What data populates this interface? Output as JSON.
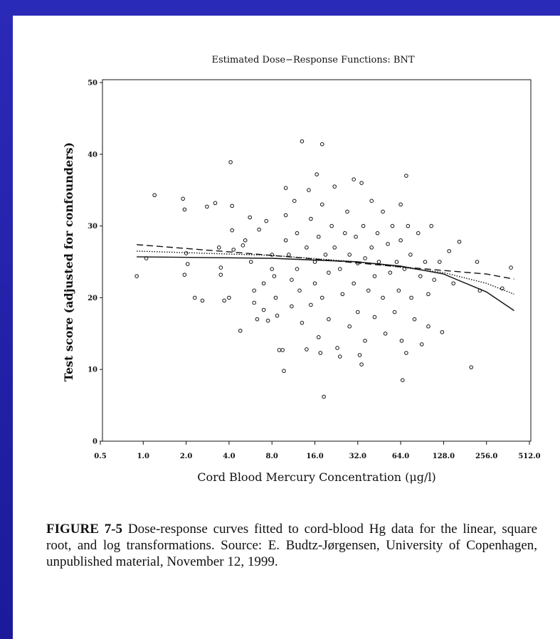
{
  "chart_data": {
    "type": "scatter",
    "title": "Estimated Dose−Response Functions: BNT",
    "xlabel": "Cord Blood Mercury Concentration (μg/l)",
    "ylabel": "Test score (adjusted for confounders)",
    "xscale": "log2",
    "xlim": [
      0.5,
      512
    ],
    "ylim": [
      0,
      50
    ],
    "xticks": [
      {
        "value": 0.5,
        "label": "0.5"
      },
      {
        "value": 1,
        "label": "1.0"
      },
      {
        "value": 2,
        "label": "2.0"
      },
      {
        "value": 4,
        "label": "4.0"
      },
      {
        "value": 8,
        "label": "8.0"
      },
      {
        "value": 16,
        "label": "16.0"
      },
      {
        "value": 32,
        "label": "32.0"
      },
      {
        "value": 64,
        "label": "64.0"
      },
      {
        "value": 128,
        "label": "128.0"
      },
      {
        "value": 256,
        "label": "256.0"
      },
      {
        "value": 512,
        "label": "512.0"
      }
    ],
    "yticks": [
      0,
      10,
      20,
      30,
      40,
      50
    ],
    "color": "#111111",
    "points": {
      "x": [
        0.9,
        1.05,
        1.2,
        1.9,
        1.95,
        2,
        1.95,
        2.05,
        2.3,
        2.6,
        2.8,
        3.2,
        3.4,
        3.5,
        3.5,
        3.7,
        4,
        4.1,
        4.2,
        4.2,
        4.3,
        4.8,
        5,
        5.2,
        5.6,
        5.7,
        6,
        6,
        6.3,
        6.5,
        7,
        7,
        7.3,
        7.5,
        8,
        8,
        8.3,
        8.5,
        8.7,
        9,
        9.5,
        9.7,
        10,
        10,
        10,
        10.5,
        11,
        11,
        11.5,
        12,
        12,
        12.5,
        13,
        13,
        14,
        14,
        14.5,
        15,
        15,
        16,
        16,
        16.5,
        17,
        17,
        17.5,
        18,
        18,
        18,
        18.5,
        19,
        20,
        20,
        21,
        22,
        22,
        23,
        24,
        24,
        25,
        26,
        27,
        28,
        28,
        30,
        30,
        31,
        32,
        32,
        33,
        34,
        34,
        35,
        36,
        36,
        38,
        40,
        40,
        42,
        42,
        44,
        45,
        48,
        48,
        50,
        52,
        54,
        56,
        58,
        60,
        62,
        64,
        64,
        65,
        66,
        68,
        70,
        70,
        72,
        75,
        76,
        80,
        85,
        88,
        90,
        95,
        100,
        100,
        105,
        110,
        120,
        125,
        140,
        150,
        165,
        200,
        220,
        230,
        330,
        380
      ],
      "y": [
        23,
        25.5,
        34.3,
        33.8,
        32.3,
        26.2,
        23.2,
        24.7,
        20,
        19.6,
        32.7,
        33.2,
        27,
        24.2,
        23.2,
        19.6,
        20,
        38.9,
        32.8,
        29.4,
        26.7,
        15.4,
        27.3,
        28,
        31.2,
        25,
        21,
        19.3,
        17,
        29.5,
        22,
        18.3,
        30.7,
        16.8,
        26,
        24,
        23,
        20,
        17.5,
        12.7,
        12.7,
        9.8,
        35.3,
        31.5,
        28,
        26,
        22.5,
        18.8,
        33.5,
        29,
        24,
        21,
        41.8,
        16.5,
        27,
        12.8,
        35,
        31,
        19,
        25,
        22,
        37.2,
        28.5,
        14.5,
        12.3,
        41.4,
        33,
        20,
        6.2,
        26,
        23.5,
        17,
        30,
        27,
        35.5,
        13,
        24,
        11.8,
        20.5,
        29,
        32,
        26,
        16,
        22,
        36.5,
        28.5,
        24.8,
        18,
        12,
        36,
        10.7,
        30,
        25.5,
        14,
        21,
        33.5,
        27,
        23,
        17.3,
        29,
        25,
        32,
        20,
        15,
        27.5,
        23.5,
        30,
        18,
        25,
        21,
        33,
        28,
        14,
        8.5,
        24,
        37,
        12.3,
        30,
        26,
        20,
        17,
        29,
        23,
        13.5,
        25,
        20.5,
        16,
        30,
        22.5,
        25,
        15.2,
        26.5,
        22,
        27.8,
        10.3,
        25,
        21,
        21.3,
        24.2
      ]
    },
    "curves": [
      {
        "style": "dashed",
        "x": [
          0.9,
          4,
          16,
          64,
          256,
          400
        ],
        "values": [
          27.4,
          26.4,
          25.4,
          24.3,
          23.3,
          22.6
        ]
      },
      {
        "style": "dotted",
        "x": [
          0.9,
          8,
          32,
          128,
          256,
          400
        ],
        "values": [
          26.5,
          25.9,
          25.0,
          23.5,
          22.0,
          20.5
        ]
      },
      {
        "style": "solid",
        "x": [
          0.9,
          8,
          32,
          64,
          128,
          256,
          400
        ],
        "values": [
          25.7,
          25.5,
          25.0,
          24.4,
          23.3,
          20.8,
          18.2
        ]
      }
    ]
  },
  "caption": {
    "label": "FIGURE 7-5",
    "text": "Dose-response curves fitted to cord-blood Hg data for the linear, square root, and log transformations.   Source: E. Budtz-Jørgensen, University of Copenhagen, unpublished material, November 12, 1999."
  }
}
